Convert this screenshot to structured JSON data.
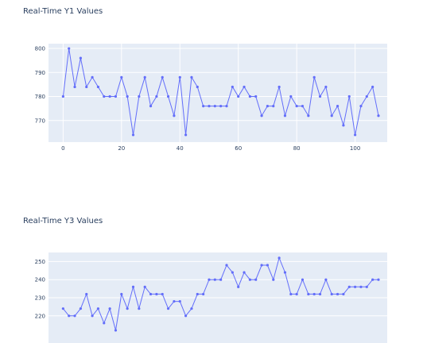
{
  "chart_data": [
    {
      "type": "line",
      "title": "Real-Time Y1 Values",
      "xlabel": "",
      "ylabel": "",
      "xlim": [
        -5,
        111
      ],
      "ylim": [
        761,
        802
      ],
      "xticks": [
        0,
        20,
        40,
        60,
        80,
        100
      ],
      "yticks": [
        770,
        780,
        790,
        800
      ],
      "grid": true,
      "line_color": "#636efa",
      "plot_bg": "#e5ecf6",
      "series": [
        {
          "x": [
            0,
            2,
            4,
            6,
            8,
            10,
            12,
            14,
            16,
            18,
            20,
            22,
            24,
            26,
            28,
            30,
            32,
            34,
            36,
            38,
            40,
            42,
            44,
            46,
            48,
            50,
            52,
            54,
            56,
            58,
            60,
            62,
            64,
            66,
            68,
            70,
            72,
            74,
            76,
            78,
            80,
            82,
            84,
            86,
            88,
            90,
            92,
            94,
            96,
            98,
            100,
            102,
            104,
            106,
            108
          ],
          "values": [
            780,
            800,
            784,
            796,
            784,
            788,
            784,
            780,
            780,
            780,
            788,
            780,
            764,
            780,
            788,
            776,
            780,
            788,
            780,
            772,
            788,
            764,
            788,
            784,
            776,
            776,
            776,
            776,
            776,
            784,
            780,
            784,
            780,
            780,
            772,
            776,
            776,
            784,
            772,
            780,
            776,
            776,
            772,
            788,
            780,
            784,
            772,
            776,
            768,
            780,
            764,
            776,
            780,
            784,
            772
          ]
        }
      ]
    },
    {
      "type": "line",
      "title": "Real-Time Y3 Values",
      "xlabel": "",
      "ylabel": "",
      "xlim": [
        -5,
        111
      ],
      "ylim": [
        205,
        255
      ],
      "yticks": [
        220,
        230,
        240,
        250
      ],
      "grid": true,
      "line_color": "#636efa",
      "plot_bg": "#e5ecf6",
      "series": [
        {
          "x": [
            0,
            2,
            4,
            6,
            8,
            10,
            12,
            14,
            16,
            18,
            20,
            22,
            24,
            26,
            28,
            30,
            32,
            34,
            36,
            38,
            40,
            42,
            44,
            46,
            48,
            50,
            52,
            54,
            56,
            58,
            60,
            62,
            64,
            66,
            68,
            70,
            72,
            74,
            76,
            78,
            80,
            82,
            84,
            86,
            88,
            90,
            92,
            94,
            96,
            98,
            100,
            102,
            104,
            106,
            108
          ],
          "values": [
            224,
            220,
            220,
            224,
            232,
            220,
            224,
            216,
            224,
            212,
            232,
            224,
            236,
            224,
            236,
            232,
            232,
            232,
            224,
            228,
            228,
            220,
            224,
            232,
            232,
            240,
            240,
            240,
            248,
            244,
            236,
            244,
            240,
            240,
            248,
            248,
            240,
            252,
            244,
            232,
            232,
            240,
            232,
            232,
            232,
            240,
            232,
            232,
            232,
            236,
            236,
            236,
            236,
            240,
            240
          ]
        }
      ]
    }
  ]
}
